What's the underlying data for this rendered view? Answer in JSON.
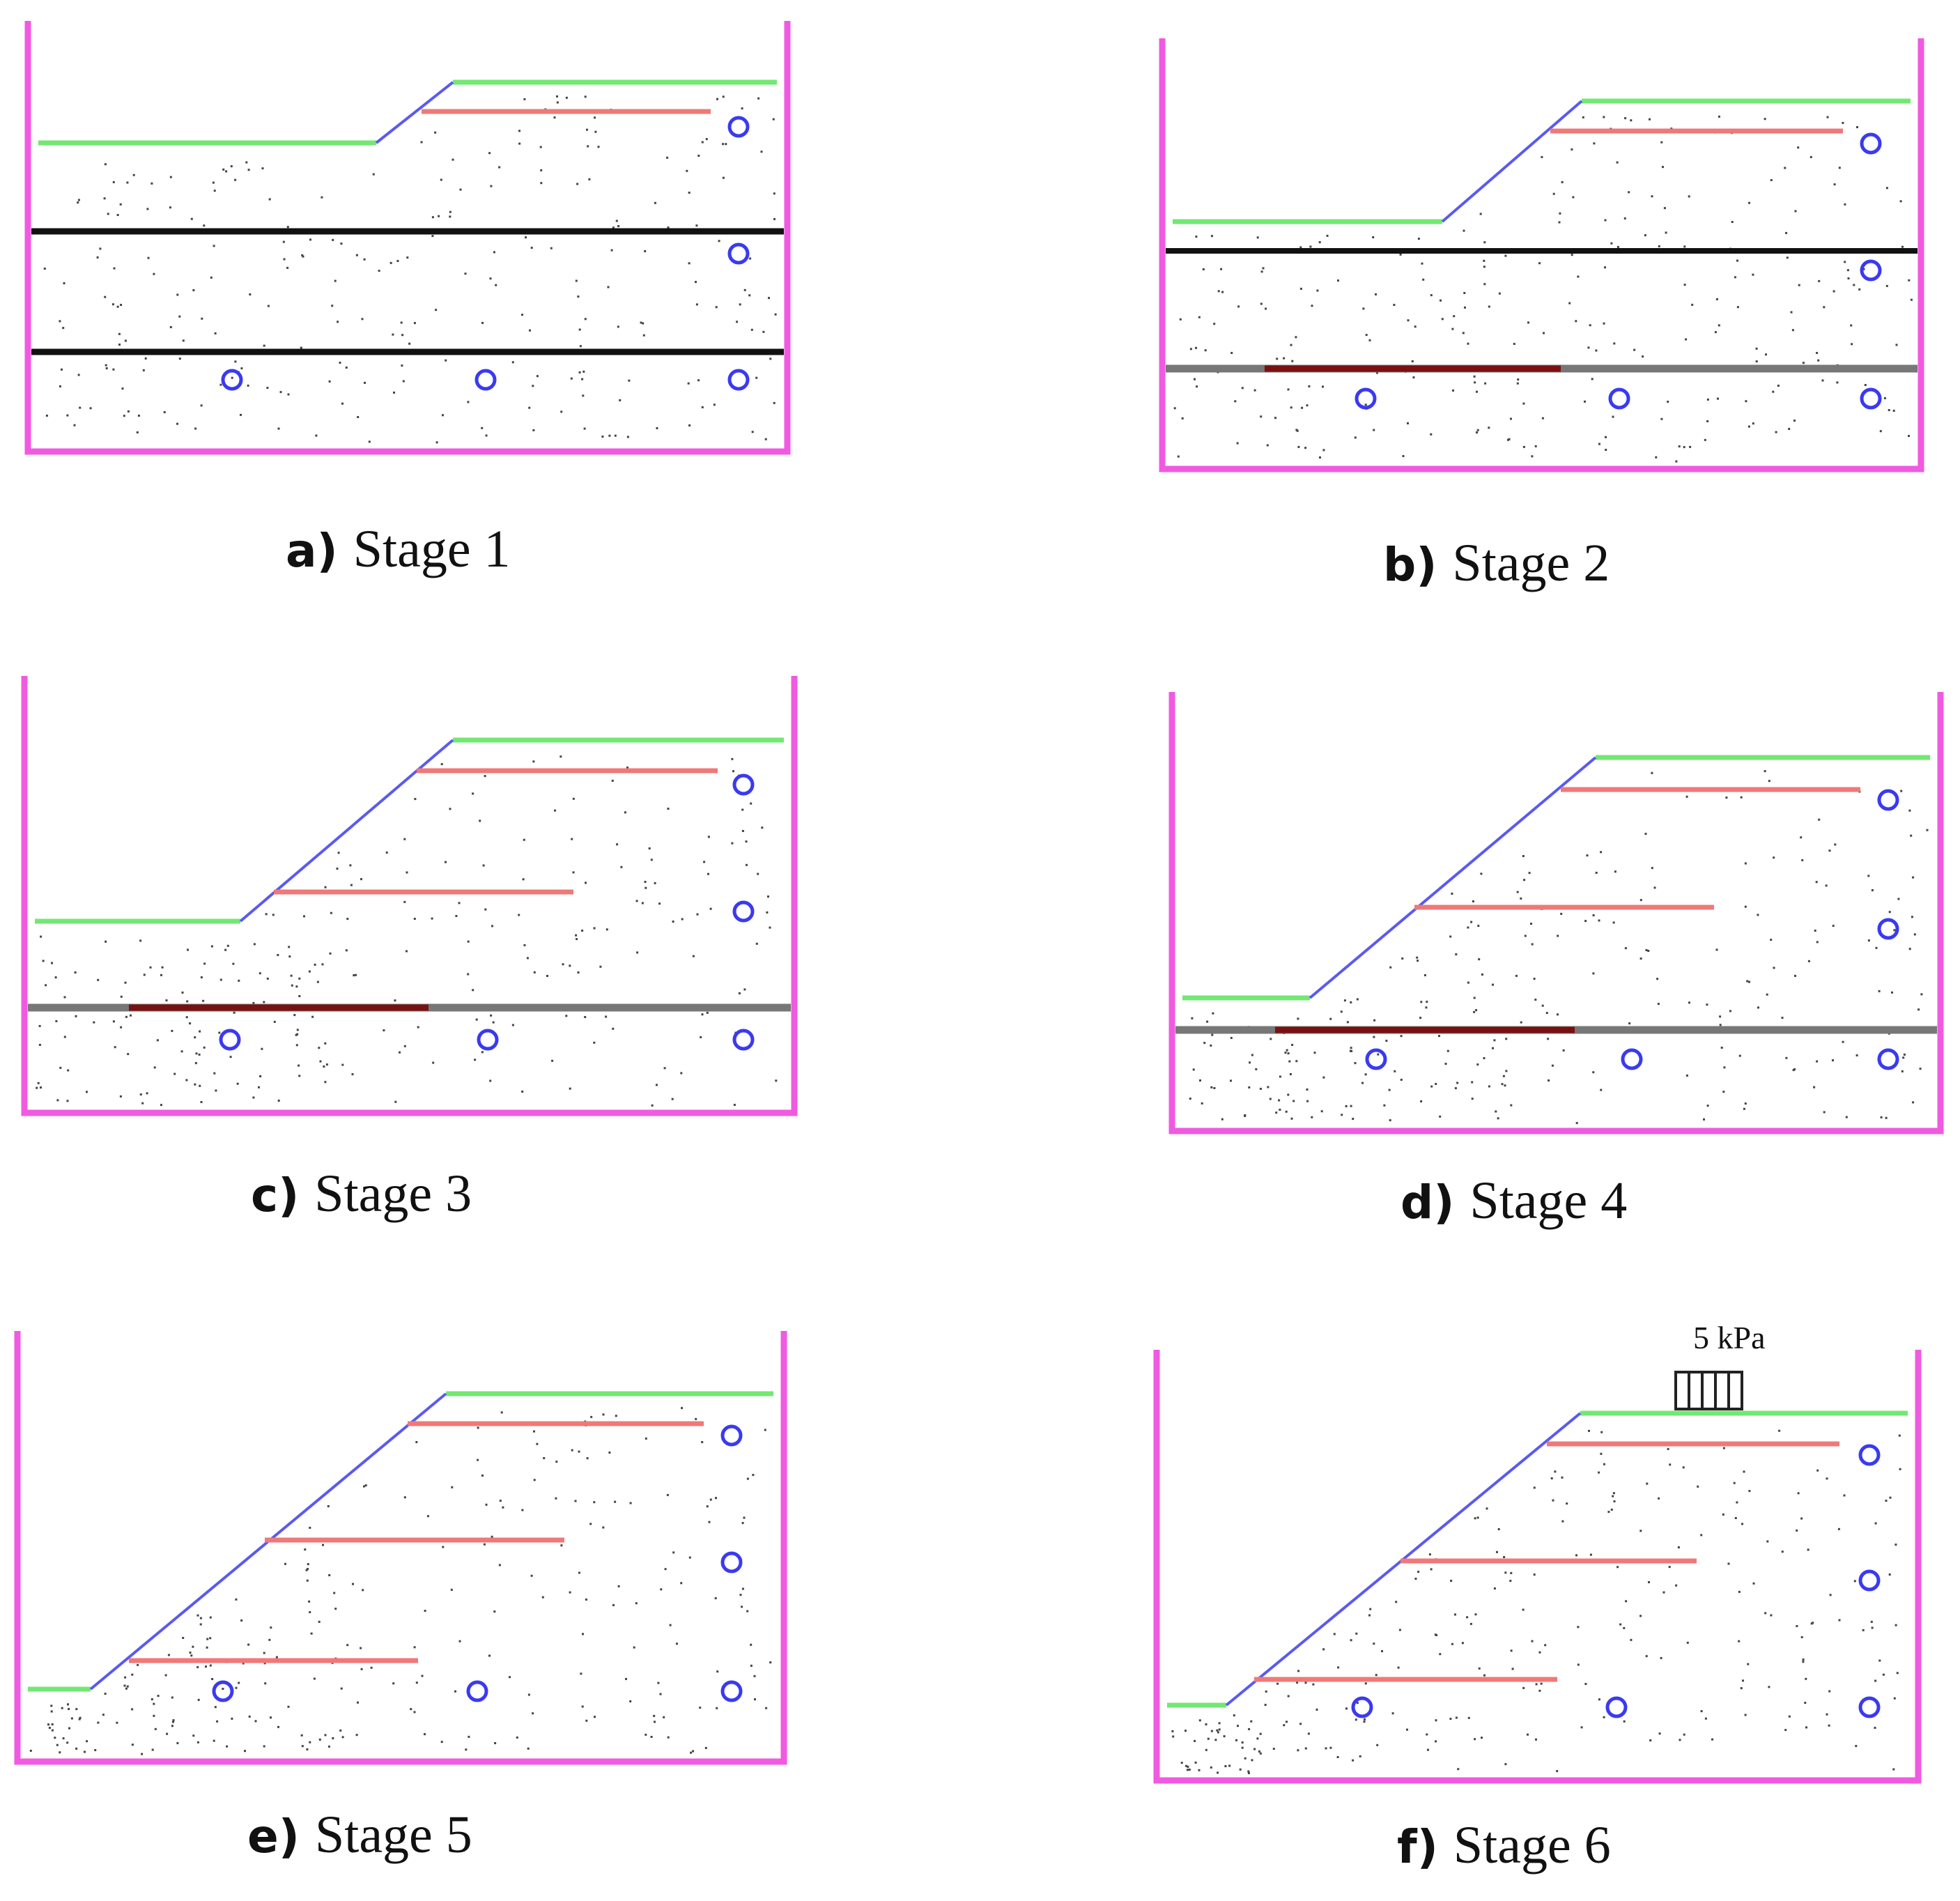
{
  "panels": [
    {
      "letter": "a)",
      "caption": "Stage 1"
    },
    {
      "letter": "b)",
      "caption": "Stage 2"
    },
    {
      "letter": "c)",
      "caption": "Stage 3"
    },
    {
      "letter": "d)",
      "caption": "Stage 4"
    },
    {
      "letter": "e)",
      "caption": "Stage 5"
    },
    {
      "letter": "f)",
      "caption": "Stage 6",
      "load_label": "5 kPa"
    }
  ],
  "colors": {
    "box": "#f05ae0",
    "ground_surface": "#72e872",
    "slope_face": "#5a5af0",
    "reinforcement": "#f07878",
    "layer_line": "#111111",
    "base_layer": "#777777",
    "base_strip": "#7a1010",
    "sensor": "#3a3af0",
    "dots": "#444444"
  },
  "icons": [
    "sensor-circle-icon",
    "distributed-load-icon"
  ]
}
